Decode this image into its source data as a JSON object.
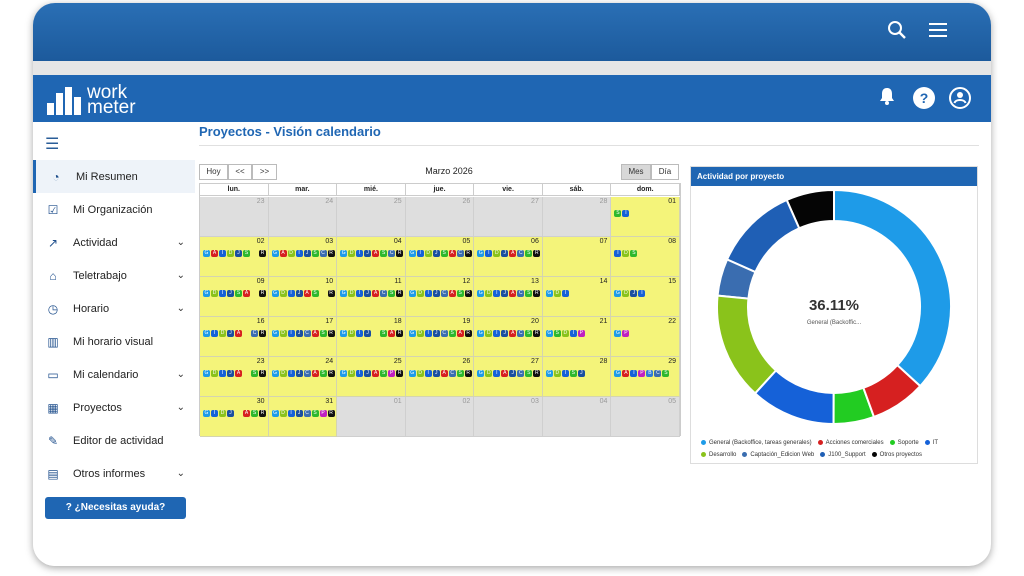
{
  "app": {
    "logo_line1": "work",
    "logo_line2": "meter"
  },
  "page_title": "Proyectos - Visión calendario",
  "sidebar": {
    "items": [
      {
        "label": "Mi Resumen",
        "icon": "gauge-icon",
        "chevron": false,
        "active": true
      },
      {
        "label": "Mi Organización",
        "icon": "calendar-check-icon",
        "chevron": false
      },
      {
        "label": "Actividad",
        "icon": "trend-icon",
        "chevron": true
      },
      {
        "label": "Teletrabajo",
        "icon": "home-icon",
        "chevron": true
      },
      {
        "label": "Horario",
        "icon": "clock-icon",
        "chevron": true
      },
      {
        "label": "Mi horario visual",
        "icon": "chart-plus-icon",
        "chevron": false
      },
      {
        "label": "Mi calendario",
        "icon": "calendar-icon",
        "chevron": true
      },
      {
        "label": "Proyectos",
        "icon": "grid-icon",
        "chevron": true
      },
      {
        "label": "Editor de actividad",
        "icon": "pencil-icon",
        "chevron": false
      },
      {
        "label": "Otros informes",
        "icon": "report-icon",
        "chevron": true
      }
    ],
    "help_button": "¿Necesitas ayuda?"
  },
  "calendar": {
    "today": "Hoy",
    "prev": "<<",
    "next": ">>",
    "title": "Marzo 2026",
    "view_month": "Mes",
    "view_day": "Día",
    "weekdays": [
      "lun.",
      "mar.",
      "mié.",
      "jue.",
      "vie.",
      "sáb.",
      "dom."
    ],
    "weeks": [
      [
        {
          "d": "23",
          "in": false,
          "c": ""
        },
        {
          "d": "24",
          "in": false,
          "c": ""
        },
        {
          "d": "25",
          "in": false,
          "c": ""
        },
        {
          "d": "26",
          "in": false,
          "c": ""
        },
        {
          "d": "27",
          "in": false,
          "c": ""
        },
        {
          "d": "28",
          "in": false,
          "c": ""
        },
        {
          "d": "01",
          "in": true,
          "c": "SI"
        }
      ],
      [
        {
          "d": "02",
          "in": true,
          "c": "GAIDJS R"
        },
        {
          "d": "03",
          "in": true,
          "c": "GADIJSCR"
        },
        {
          "d": "04",
          "in": true,
          "c": "GDIJASCR"
        },
        {
          "d": "05",
          "in": true,
          "c": "GIDJSACR"
        },
        {
          "d": "06",
          "in": true,
          "c": "GIDJACSR"
        },
        {
          "d": "07",
          "in": true,
          "c": ""
        },
        {
          "d": "08",
          "in": true,
          "c": "IDS"
        }
      ],
      [
        {
          "d": "09",
          "in": true,
          "c": "GDIJSA R"
        },
        {
          "d": "10",
          "in": true,
          "c": "GDIJAS R"
        },
        {
          "d": "11",
          "in": true,
          "c": "GDIJACSR"
        },
        {
          "d": "12",
          "in": true,
          "c": "GDIJCASR"
        },
        {
          "d": "13",
          "in": true,
          "c": "GDIJACSR"
        },
        {
          "d": "14",
          "in": true,
          "c": "GDI"
        },
        {
          "d": "15",
          "in": true,
          "c": "GDJI"
        }
      ],
      [
        {
          "d": "16",
          "in": true,
          "c": "GIDJA CR"
        },
        {
          "d": "17",
          "in": true,
          "c": "GDIJCASR"
        },
        {
          "d": "18",
          "in": true,
          "c": "GDIJ SAR"
        },
        {
          "d": "19",
          "in": true,
          "c": "GDIJCSAR"
        },
        {
          "d": "20",
          "in": true,
          "c": "GDIJACSR"
        },
        {
          "d": "21",
          "in": true,
          "c": "GSDIP"
        },
        {
          "d": "22",
          "in": true,
          "c": "GP"
        }
      ],
      [
        {
          "d": "23",
          "in": true,
          "c": "GDIJA SR"
        },
        {
          "d": "24",
          "in": true,
          "c": "GDIJCASR"
        },
        {
          "d": "25",
          "in": true,
          "c": "GDIJASPR"
        },
        {
          "d": "26",
          "in": true,
          "c": "GDIJACSR"
        },
        {
          "d": "27",
          "in": true,
          "c": "GDIAJCSR"
        },
        {
          "d": "28",
          "in": true,
          "c": "GDISJ"
        },
        {
          "d": "29",
          "in": true,
          "c": "GAIPBCS"
        }
      ],
      [
        {
          "d": "30",
          "in": true,
          "c": "GIDJ ASR"
        },
        {
          "d": "31",
          "in": true,
          "c": "GDIJCSPR"
        },
        {
          "d": "01",
          "in": false,
          "c": ""
        },
        {
          "d": "02",
          "in": false,
          "c": ""
        },
        {
          "d": "03",
          "in": false,
          "c": ""
        },
        {
          "d": "04",
          "in": false,
          "c": ""
        },
        {
          "d": "05",
          "in": false,
          "c": ""
        }
      ]
    ]
  },
  "chip_colors": {
    "G": "#1e9be8",
    "A": "#d62020",
    "D": "#8ac31b",
    "I": "#1561d8",
    "J": "#1a4fa0",
    "S": "#2db82d",
    "C": "#3a6db0",
    "R": "#111111",
    "P": "#c020c0",
    "B": "#2e7bd6"
  },
  "panel": {
    "title": "Actividad por proyecto",
    "center_value": "36.11%",
    "center_label": "General (Backoffic..."
  },
  "chart_data": {
    "type": "pie",
    "title": "Actividad por proyecto",
    "series": [
      {
        "name": "General (Backoffice, tareas generales)",
        "value": 36.11,
        "color": "#1e9be8"
      },
      {
        "name": "Acciones comerciales",
        "value": 7.5,
        "color": "#d62020"
      },
      {
        "name": "Soporte",
        "value": 5.5,
        "color": "#22cc22"
      },
      {
        "name": "IT",
        "value": 11.5,
        "color": "#1561d8"
      },
      {
        "name": "Desarrollo",
        "value": 14.5,
        "color": "#8ac31b"
      },
      {
        "name": "Captación_Edicion Web",
        "value": 5.0,
        "color": "#3a6db0"
      },
      {
        "name": "J100_Support",
        "value": 11.5,
        "color": "#1f5fb5"
      },
      {
        "name": "Otros proyectos",
        "value": 6.5,
        "color": "#050505"
      }
    ],
    "legend_position": "bottom"
  }
}
